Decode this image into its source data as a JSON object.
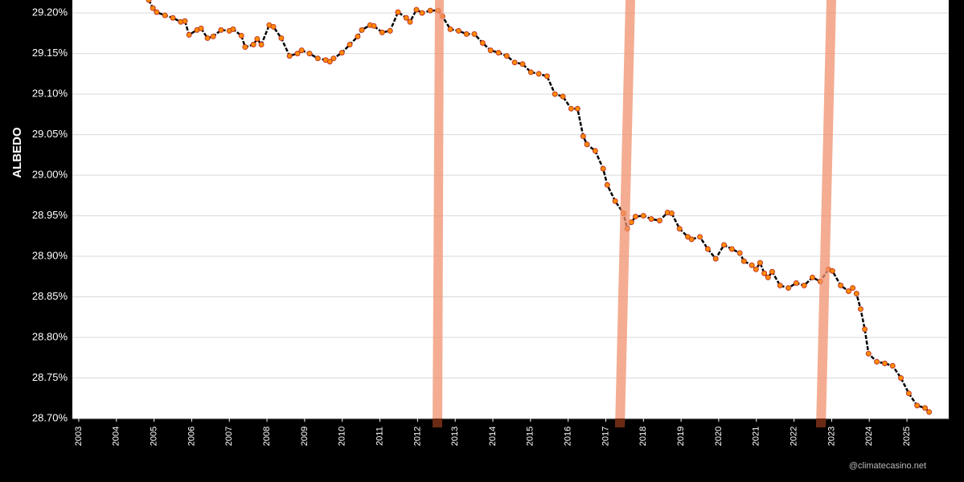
{
  "chart_data": {
    "type": "line",
    "y_label": "ALBEDO",
    "watermark": "@climatecasino.net",
    "color": "#ff8c00",
    "grid": true,
    "xlim": [
      2002.83,
      2026.11
    ],
    "ylim": [
      28.7,
      29.216
    ],
    "xticks": [
      2003,
      2004,
      2005,
      2006,
      2007,
      2008,
      2009,
      2010,
      2011,
      2012,
      2013,
      2014,
      2015,
      2016,
      2017,
      2018,
      2019,
      2020,
      2021,
      2022,
      2023,
      2024,
      2025
    ],
    "yticks": [
      {
        "value": 28.7,
        "label": "28.70%"
      },
      {
        "value": 28.75,
        "label": "28.75%"
      },
      {
        "value": 28.8,
        "label": "28.80%"
      },
      {
        "value": 28.85,
        "label": "28.85%"
      },
      {
        "value": 28.9,
        "label": "28.90%"
      },
      {
        "value": 28.95,
        "label": "28.95%"
      },
      {
        "value": 29.0,
        "label": "29.00%"
      },
      {
        "value": 29.05,
        "label": "29.05%"
      },
      {
        "value": 29.1,
        "label": "29.10%"
      },
      {
        "value": 29.15,
        "label": "29.15%"
      },
      {
        "value": 29.2,
        "label": "29.20%"
      }
    ],
    "x": [
      2004.86,
      2004.97,
      2005.07,
      2005.29,
      2005.5,
      2005.71,
      2005.82,
      2005.93,
      2006.14,
      2006.25,
      2006.42,
      2006.57,
      2006.78,
      2007.0,
      2007.1,
      2007.32,
      2007.42,
      2007.64,
      2007.74,
      2007.85,
      2008.06,
      2008.17,
      2008.38,
      2008.6,
      2008.81,
      2008.92,
      2009.13,
      2009.35,
      2009.56,
      2009.67,
      2009.77,
      2009.99,
      2010.2,
      2010.41,
      2010.52,
      2010.74,
      2010.84,
      2011.06,
      2011.27,
      2011.48,
      2011.7,
      2011.8,
      2011.97,
      2012.12,
      2012.34,
      2012.55,
      2012.66,
      2012.87,
      2013.09,
      2013.3,
      2013.51,
      2013.73,
      2013.94,
      2014.15,
      2014.37,
      2014.58,
      2014.79,
      2015.01,
      2015.22,
      2015.44,
      2015.65,
      2015.86,
      2016.08,
      2016.25,
      2016.4,
      2016.5,
      2016.72,
      2016.93,
      2017.04,
      2017.25,
      2017.47,
      2017.57,
      2017.68,
      2017.79,
      2018.0,
      2018.21,
      2018.43,
      2018.64,
      2018.75,
      2018.96,
      2019.18,
      2019.28,
      2019.5,
      2019.71,
      2019.92,
      2020.14,
      2020.35,
      2020.56,
      2020.67,
      2020.88,
      2020.99,
      2021.1,
      2021.21,
      2021.31,
      2021.42,
      2021.63,
      2021.85,
      2022.06,
      2022.27,
      2022.49,
      2022.7,
      2022.91,
      2023.02,
      2023.24,
      2023.45,
      2023.56,
      2023.66,
      2023.77,
      2023.88,
      2023.98,
      2024.2,
      2024.41,
      2024.62,
      2024.84,
      2025.05,
      2025.27,
      2025.48,
      2025.59
    ],
    "values": [
      29.216,
      29.206,
      29.201,
      29.197,
      29.194,
      29.189,
      29.19,
      29.173,
      29.179,
      29.181,
      29.169,
      29.171,
      29.179,
      29.178,
      29.18,
      29.172,
      29.158,
      29.161,
      29.168,
      29.161,
      29.185,
      29.183,
      29.169,
      29.147,
      29.15,
      29.154,
      29.15,
      29.144,
      29.142,
      29.14,
      29.144,
      29.151,
      29.161,
      29.171,
      29.179,
      29.185,
      29.184,
      29.176,
      29.178,
      29.201,
      29.194,
      29.189,
      29.204,
      29.2,
      29.203,
      29.203,
      29.196,
      29.18,
      29.178,
      29.174,
      29.174,
      29.163,
      29.154,
      29.151,
      29.147,
      29.139,
      29.137,
      29.127,
      29.125,
      29.122,
      29.1,
      29.097,
      29.082,
      29.082,
      29.048,
      29.038,
      29.03,
      29.008,
      28.988,
      28.968,
      28.953,
      28.934,
      28.942,
      28.949,
      28.95,
      28.946,
      28.944,
      28.954,
      28.953,
      28.934,
      28.924,
      28.921,
      28.924,
      28.909,
      28.897,
      28.914,
      28.909,
      28.904,
      28.894,
      28.889,
      28.884,
      28.892,
      28.879,
      28.874,
      28.881,
      28.864,
      28.861,
      28.867,
      28.864,
      28.874,
      28.869,
      28.884,
      28.882,
      28.864,
      28.857,
      28.861,
      28.854,
      28.835,
      28.81,
      28.78,
      28.77,
      28.768,
      28.765,
      28.75,
      28.731,
      28.716,
      28.713,
      28.708
    ]
  }
}
